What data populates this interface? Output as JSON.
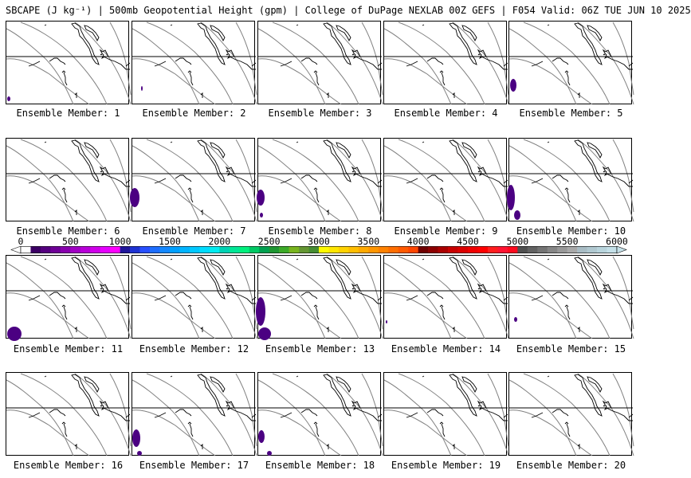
{
  "title": "SBCAPE (J kg⁻¹) | 500mb Geopotential Height (gpm) | College of DuPage NEXLAB 00Z GEFS | F054 Valid: 06Z TUE JUN 10 2025",
  "member_label_prefix": "Ensemble Member:",
  "members": [
    {
      "number": "1",
      "cape": [
        [
          3,
          97,
          2,
          3
        ]
      ]
    },
    {
      "number": "2",
      "cape": [
        [
          12,
          84,
          1,
          3
        ]
      ]
    },
    {
      "number": "3",
      "cape": []
    },
    {
      "number": "4",
      "cape": []
    },
    {
      "number": "5",
      "cape": [
        [
          5,
          80,
          4,
          8
        ]
      ]
    },
    {
      "number": "6",
      "cape": []
    },
    {
      "number": "7",
      "cape": [
        [
          3,
          74,
          6,
          12
        ]
      ]
    },
    {
      "number": "8",
      "cape": [
        [
          3,
          74,
          5,
          10
        ],
        [
          4,
          96,
          2,
          3
        ]
      ]
    },
    {
      "number": "9",
      "cape": []
    },
    {
      "number": "10",
      "cape": [
        [
          2,
          74,
          5,
          16
        ],
        [
          10,
          96,
          4,
          6
        ]
      ]
    },
    {
      "number": "11",
      "cape": [
        [
          10,
          98,
          9,
          9
        ]
      ]
    },
    {
      "number": "12",
      "cape": []
    },
    {
      "number": "13",
      "cape": [
        [
          3,
          70,
          6,
          18
        ],
        [
          8,
          98,
          8,
          8
        ]
      ]
    },
    {
      "number": "14",
      "cape": [
        [
          3,
          83,
          1,
          2
        ]
      ]
    },
    {
      "number": "15",
      "cape": [
        [
          8,
          80,
          2,
          3
        ]
      ]
    },
    {
      "number": "16",
      "cape": []
    },
    {
      "number": "17",
      "cape": [
        [
          5,
          82,
          5,
          11
        ],
        [
          9,
          101,
          3,
          3
        ]
      ]
    },
    {
      "number": "18",
      "cape": [
        [
          4,
          80,
          4,
          8
        ],
        [
          14,
          101,
          3,
          3
        ]
      ]
    },
    {
      "number": "19",
      "cape": []
    },
    {
      "number": "20",
      "cape": []
    }
  ],
  "colorbar": {
    "ticks": [
      "0",
      "500",
      "1000",
      "1500",
      "2000",
      "2500",
      "3000",
      "3500",
      "4000",
      "4500",
      "5000",
      "5500",
      "6000"
    ],
    "colors": [
      "#ffffff",
      "#3c0064",
      "#55007f",
      "#6e0096",
      "#8800ad",
      "#a000c3",
      "#b800d8",
      "#d000ea",
      "#e600ff",
      "#ff00ff",
      "#20169a",
      "#1e32d2",
      "#2850ff",
      "#1e6eff",
      "#1488ff",
      "#00a0ff",
      "#00b4ff",
      "#00c8ff",
      "#00dcff",
      "#00ebf0",
      "#00d2b4",
      "#00e696",
      "#00f07d",
      "#00c864",
      "#00a050",
      "#1e9632",
      "#3caa28",
      "#78b41e",
      "#649632",
      "#468c32",
      "#fffa00",
      "#ffe600",
      "#ffd200",
      "#ffbe00",
      "#ffaa00",
      "#ff9600",
      "#ff8200",
      "#ff6e00",
      "#ff5a00",
      "#ff4600",
      "#6e0000",
      "#8c0000",
      "#aa0000",
      "#c80000",
      "#dc0000",
      "#f00000",
      "#ff0000",
      "#ff1e1e",
      "#ff1432",
      "#ff0a1e",
      "#505050",
      "#626262",
      "#747474",
      "#868686",
      "#989898",
      "#a8a8a8",
      "#a8bcc4",
      "#b0c8d0",
      "#b8d4dc",
      "#c4e0e8"
    ],
    "start_color": "#ffffff",
    "end_color": "#c4e0e8"
  },
  "colors": {
    "height_contour": "#808080",
    "coastline": "#000000",
    "cape_low": "#4b0082"
  }
}
